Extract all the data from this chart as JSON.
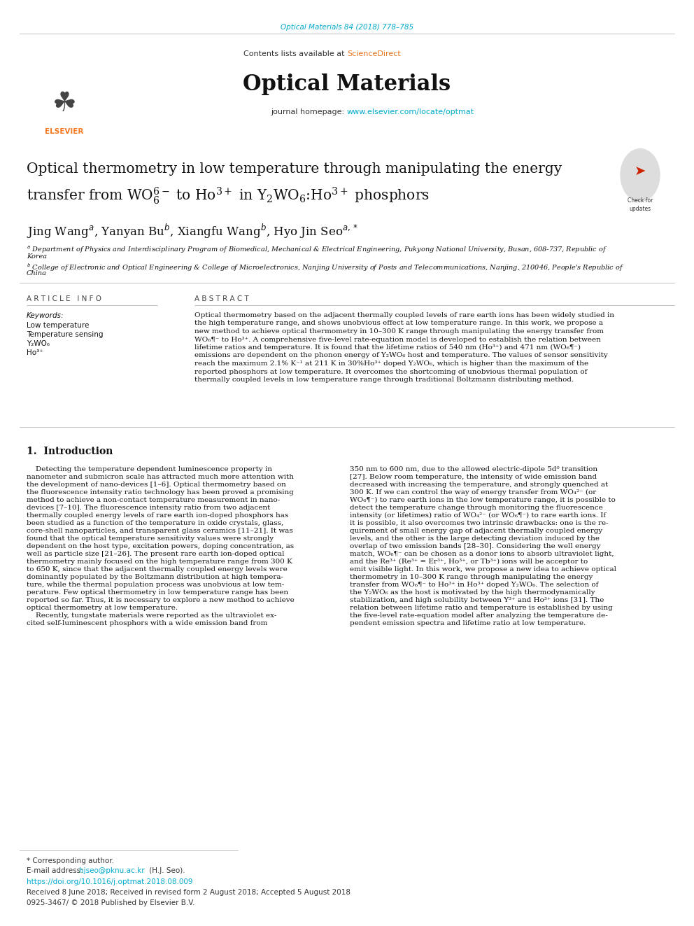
{
  "fig_width": 9.92,
  "fig_height": 13.23,
  "bg_color": "#ffffff",
  "journal_ref": "Optical Materials 84 (2018) 778–785",
  "journal_ref_color": "#00aacc",
  "journal_name": "Optical Materials",
  "contents_line": "Contents lists available at",
  "sciencedirect": "ScienceDirect",
  "sciencedirect_color": "#e87722",
  "journal_homepage_label": "journal homepage:",
  "journal_url": "www.elsevier.com/locate/optmat",
  "journal_url_color": "#00aacc",
  "title_line1": "Optical thermometry in low temperature through manipulating the energy",
  "title_line2": "transfer from $\\mathregular{WO_6^{6-}}$ to $\\mathregular{Ho^{3+}}$ in $\\mathregular{Y_2WO_6}$:$\\mathregular{Ho^{3+}}$ phosphors",
  "authors_text": "Jing Wang$^{a}$, Yanyan Bu$^{b}$, Xiangfu Wang$^{b}$, Hyo Jin Seo$^{a,*}$",
  "affil_a": "$^{a}$ Department of Physics and Interdisciplinary Program of Biomedical, Mechanical & Electrical Engineering, Pukyong National University, Busan, 608-737, Republic of",
  "affil_a2": "Korea",
  "affil_b": "$^{b}$ College of Electronic and Optical Engineering & College of Microelectronics, Nanjing University of Posts and Telecommunications, Nanjing, 210046, People's Republic of",
  "affil_b2": "China",
  "article_info_header": "A R T I C L E   I N F O",
  "abstract_header": "A B S T R A C T",
  "keywords_label": "Keywords:",
  "keywords": [
    "Low temperature",
    "Temperature sensing",
    "Y₂WO₆",
    "Ho³⁺"
  ],
  "abstract_lines": [
    "Optical thermometry based on the adjacent thermally coupled levels of rare earth ions has been widely studied in",
    "the high temperature range, and shows unobvious effect at low temperature range. In this work, we propose a",
    "new method to achieve optical thermometry in 10–300 K range through manipulating the energy transfer from",
    "WO₆¶⁻ to Ho³⁺. A comprehensive five-level rate-equation model is developed to establish the relation between",
    "lifetime ratios and temperature. It is found that the lifetime ratios of 540 nm (Ho³⁺) and 471 nm (WO₆¶⁻)",
    "emissions are dependent on the phonon energy of Y₂WO₆ host and temperature. The values of sensor sensitivity",
    "reach the maximum 2.1% K⁻¹ at 211 K in 30%Ho³⁺ doped Y₂WO₆, which is higher than the maximum of the",
    "reported phosphors at low temperature. It overcomes the shortcoming of unobvious thermal population of",
    "thermally coupled levels in low temperature range through traditional Boltzmann distributing method."
  ],
  "intro_header": "1.  Introduction",
  "intro_col1_lines": [
    "    Detecting the temperature dependent luminescence property in",
    "nanometer and submicron scale has attracted much more attention with",
    "the development of nano-devices [1–6]. Optical thermometry based on",
    "the fluorescence intensity ratio technology has been proved a promising",
    "method to achieve a non-contact temperature measurement in nano-",
    "devices [7–10]. The fluorescence intensity ratio from two adjacent",
    "thermally coupled energy levels of rare earth ion-doped phosphors has",
    "been studied as a function of the temperature in oxide crystals, glass,",
    "core-shell nanoparticles, and transparent glass ceramics [11–21]. It was",
    "found that the optical temperature sensitivity values were strongly",
    "dependent on the host type, excitation powers, doping concentration, as",
    "well as particle size [21–26]. The present rare earth ion-doped optical",
    "thermometry mainly focused on the high temperature range from 300 K",
    "to 650 K, since that the adjacent thermally coupled energy levels were",
    "dominantly populated by the Boltzmann distribution at high tempera-",
    "ture, while the thermal population process was unobvious at low tem-",
    "perature. Few optical thermometry in low temperature range has been",
    "reported so far. Thus, it is necessary to explore a new method to achieve",
    "optical thermometry at low temperature.",
    "    Recently, tungstate materials were reported as the ultraviolet ex-",
    "cited self-luminescent phosphors with a wide emission band from"
  ],
  "intro_col2_lines": [
    "350 nm to 600 nm, due to the allowed electric-dipole 5d⁰ transition",
    "[27]. Below room temperature, the intensity of wide emission band",
    "decreased with increasing the temperature, and strongly quenched at",
    "300 K. If we can control the way of energy transfer from WO₄²⁻ (or",
    "WO₆¶⁻) to rare earth ions in the low temperature range, it is possible to",
    "detect the temperature change through monitoring the fluorescence",
    "intensity (or lifetimes) ratio of WO₄²⁻ (or WO₆¶⁻) to rare earth ions. If",
    "it is possible, it also overcomes two intrinsic drawbacks: one is the re-",
    "quirement of small energy gap of adjacent thermally coupled energy",
    "levels, and the other is the large detecting deviation induced by the",
    "overlap of two emission bands [28–30]. Considering the well energy",
    "match, WO₆¶⁻ can be chosen as a donor ions to absorb ultraviolet light,",
    "and the Re³⁺ (Re³⁺ = Er³⁺, Ho³⁺, or Tb³⁺) ions will be acceptor to",
    "emit visible light. In this work, we propose a new idea to achieve optical",
    "thermometry in 10–300 K range through manipulating the energy",
    "transfer from WO₆¶⁻ to Ho³⁺ in Ho³⁺ doped Y₂WO₆. The selection of",
    "the Y₂WO₆ as the host is motivated by the high thermodynamically",
    "stabilization, and high solubility between Y³⁺ and Ho³⁺ ions [31]. The",
    "relation between lifetime ratio and temperature is established by using",
    "the five-level rate-equation model after analyzing the temperature de-",
    "pendent emission spectra and lifetime ratio at low temperature."
  ],
  "footer_star": "* Corresponding author.",
  "footer_email_label": "E-mail address:",
  "footer_email": "hjseo@pknu.ac.kr",
  "footer_email_color": "#00aacc",
  "footer_email_suffix": " (H.J. Seo).",
  "footer_doi": "https://doi.org/10.1016/j.optmat.2018.08.009",
  "footer_doi_color": "#00aacc",
  "footer_received": "Received 8 June 2018; Received in revised form 2 August 2018; Accepted 5 August 2018",
  "footer_issn": "0925-3467/ © 2018 Published by Elsevier B.V.",
  "header_bg": "#e8e8e8",
  "black_bar_color": "#111111",
  "elsevier_orange": "#f47920"
}
